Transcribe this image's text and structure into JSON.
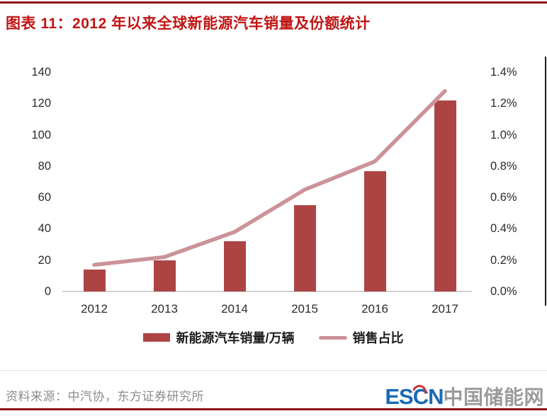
{
  "header": {
    "title": "图表 11：2012 年以来全球新能源汽车销量及份额统计"
  },
  "chart_data": {
    "type": "bar",
    "subtype": "bar+line combo, dual y-axis",
    "categories": [
      "2012",
      "2013",
      "2014",
      "2015",
      "2016",
      "2017"
    ],
    "series": [
      {
        "name": "新能源汽车销量/万辆",
        "type": "bar",
        "axis": "left",
        "values": [
          14,
          20,
          32,
          55,
          77,
          122
        ],
        "color": "#ad4444"
      },
      {
        "name": "销售占比",
        "type": "line",
        "axis": "right",
        "unit": "%",
        "values": [
          0.17,
          0.22,
          0.38,
          0.65,
          0.83,
          1.28
        ],
        "color": "#cb9399"
      }
    ],
    "title": "2012 年以来全球新能源汽车销量及份额统计",
    "xlabel": "",
    "ylabel_left": "",
    "ylabel_right": "",
    "left_axis": {
      "min": 0,
      "max": 140,
      "ticks": [
        "0",
        "20",
        "40",
        "60",
        "80",
        "100",
        "120",
        "140"
      ]
    },
    "right_axis": {
      "min": 0,
      "max": 1.4,
      "ticks": [
        "0.0%",
        "0.2%",
        "0.4%",
        "0.6%",
        "0.8%",
        "1.0%",
        "1.2%",
        "1.4%"
      ]
    },
    "grid": false,
    "legend_position": "bottom"
  },
  "footer": {
    "source": "资料来源：中汽协，东方证券研究所",
    "logo_escn": "ESCN",
    "logo_cn": "中国储能网"
  },
  "colors": {
    "title_red": "#c01414",
    "rule_dark_red": "#8e1414",
    "bar": "#ad4444",
    "line": "#cb9399",
    "axis_text": "#2b2b2b",
    "footer_gray": "#8c8c8c",
    "logo_blue": "#1a6ab5",
    "logo_gray": "#9b9b9b"
  }
}
